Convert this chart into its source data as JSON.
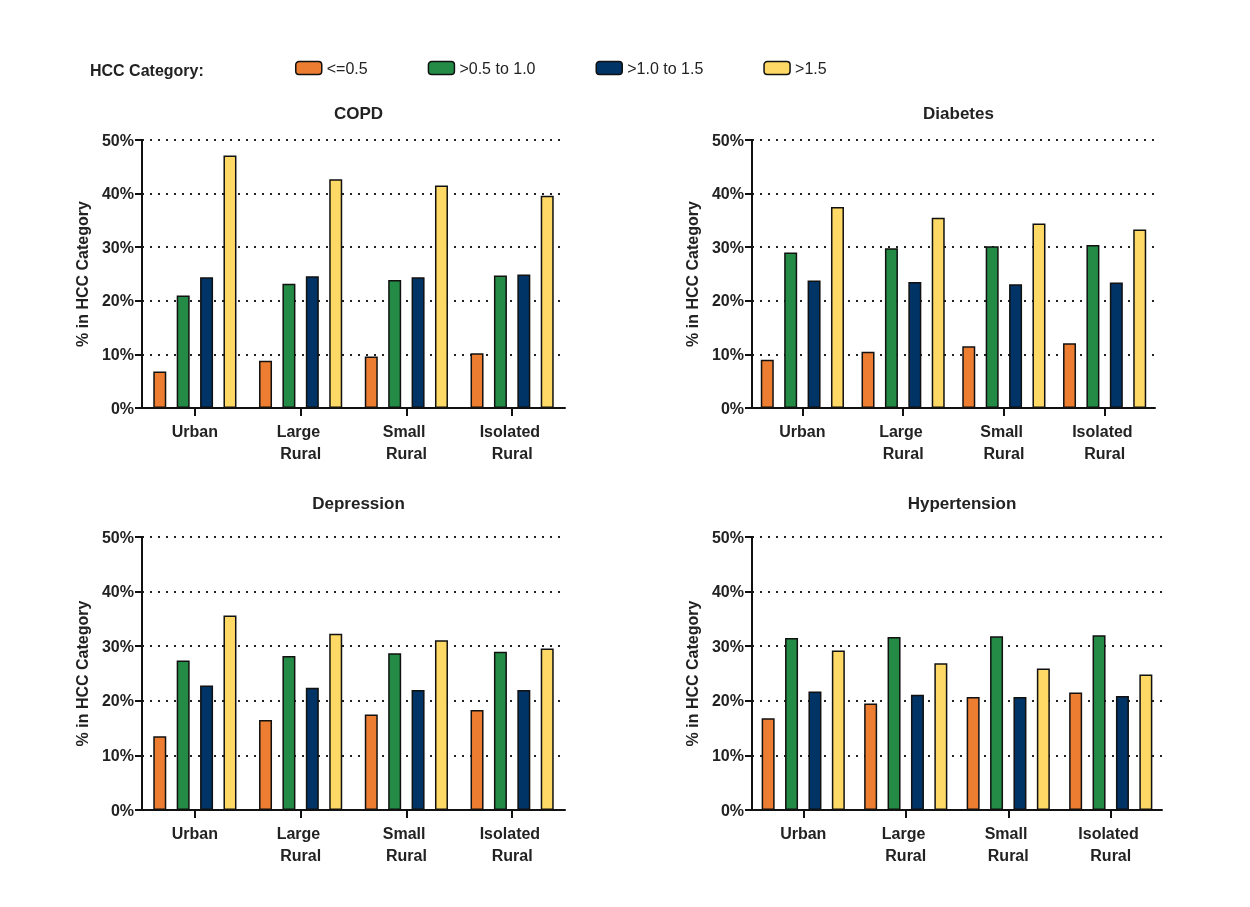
{
  "chart_data": [
    {
      "type": "bar",
      "title": "COPD",
      "ylabel": "% in HCC Category",
      "legend_title": "HCC Category:",
      "legend": "top",
      "grid": "y",
      "categories": [
        "Urban",
        "Large Rural",
        "Small Rural",
        "Isolated Rural"
      ],
      "ylim": [
        0,
        50
      ],
      "yticks": [
        {
          "value": 0,
          "label": "0%"
        },
        {
          "value": 10,
          "label": "10%"
        },
        {
          "value": 20,
          "label": "20%"
        },
        {
          "value": 30,
          "label": "30%"
        },
        {
          "value": 40,
          "label": "40%"
        },
        {
          "value": 50,
          "label": "50%"
        }
      ],
      "series": [
        {
          "name": "<=0.5",
          "color": "#ed7d31",
          "values": [
            6.8,
            8.8,
            9.6,
            10.2
          ]
        },
        {
          "name": ">0.5 to 1.0",
          "color": "#238b45",
          "values": [
            21,
            23.2,
            23.9,
            24.7
          ]
        },
        {
          "name": ">1.0 to 1.5",
          "color": "#003366",
          "values": [
            24.4,
            24.6,
            24.4,
            24.9
          ]
        },
        {
          "name": ">1.5",
          "color": "#ffd966",
          "values": [
            47.1,
            42.7,
            41.5,
            39.6
          ]
        }
      ]
    },
    {
      "type": "bar",
      "title": "Diabetes",
      "ylabel": "% in HCC Category",
      "grid": "y",
      "categories": [
        "Urban",
        "Large Rural",
        "Small Rural",
        "Isolated Rural"
      ],
      "ylim": [
        0,
        50
      ],
      "yticks": [
        {
          "value": 0,
          "label": "0%"
        },
        {
          "value": 10,
          "label": "10%"
        },
        {
          "value": 20,
          "label": "20%"
        },
        {
          "value": 30,
          "label": "30%"
        },
        {
          "value": 40,
          "label": "40%"
        },
        {
          "value": 50,
          "label": "50%"
        }
      ],
      "series": [
        {
          "color": "#ed7d31",
          "values": [
            9,
            10.5,
            11.5,
            12.1
          ]
        },
        {
          "color": "#238b45",
          "values": [
            29,
            29.8,
            30.2,
            30.4
          ]
        },
        {
          "color": "#003366",
          "values": [
            23.8,
            23.5,
            23.1,
            23.4
          ]
        },
        {
          "color": "#ffd966",
          "values": [
            37.5,
            35.5,
            34.4,
            33.3
          ]
        }
      ]
    },
    {
      "type": "bar",
      "title": "Depression",
      "ylabel": "% in HCC Category",
      "grid": "y",
      "categories": [
        "Urban",
        "Large Rural",
        "Small Rural",
        "Isolated Rural"
      ],
      "ylim": [
        0,
        50
      ],
      "yticks": [
        {
          "value": 0,
          "label": "0%"
        },
        {
          "value": 10,
          "label": "10%"
        },
        {
          "value": 20,
          "label": "20%"
        },
        {
          "value": 30,
          "label": "30%"
        },
        {
          "value": 40,
          "label": "40%"
        },
        {
          "value": 50,
          "label": "50%"
        }
      ],
      "series": [
        {
          "color": "#ed7d31",
          "values": [
            13.5,
            16.5,
            17.5,
            18.3
          ]
        },
        {
          "color": "#238b45",
          "values": [
            27.4,
            28.2,
            28.7,
            29
          ]
        },
        {
          "color": "#003366",
          "values": [
            22.8,
            22.4,
            22,
            22
          ]
        },
        {
          "color": "#ffd966",
          "values": [
            35.6,
            32.3,
            31.1,
            29.6
          ]
        }
      ]
    },
    {
      "type": "bar",
      "title": "Hypertension",
      "ylabel": "% in HCC Category",
      "grid": "y",
      "categories": [
        "Urban",
        "Large Rural",
        "Small Rural",
        "Isolated Rural"
      ],
      "ylim": [
        0,
        50
      ],
      "yticks": [
        {
          "value": 0,
          "label": "0%"
        },
        {
          "value": 10,
          "label": "10%"
        },
        {
          "value": 20,
          "label": "20%"
        },
        {
          "value": 30,
          "label": "30%"
        },
        {
          "value": 40,
          "label": "40%"
        },
        {
          "value": 50,
          "label": "50%"
        }
      ],
      "series": [
        {
          "color": "#ed7d31",
          "values": [
            16.8,
            19.5,
            20.7,
            21.5
          ]
        },
        {
          "color": "#238b45",
          "values": [
            31.5,
            31.7,
            31.8,
            32
          ]
        },
        {
          "color": "#003366",
          "values": [
            21.7,
            21.1,
            20.7,
            20.9
          ]
        },
        {
          "color": "#ffd966",
          "values": [
            29.2,
            26.9,
            25.9,
            24.8
          ]
        }
      ]
    }
  ]
}
